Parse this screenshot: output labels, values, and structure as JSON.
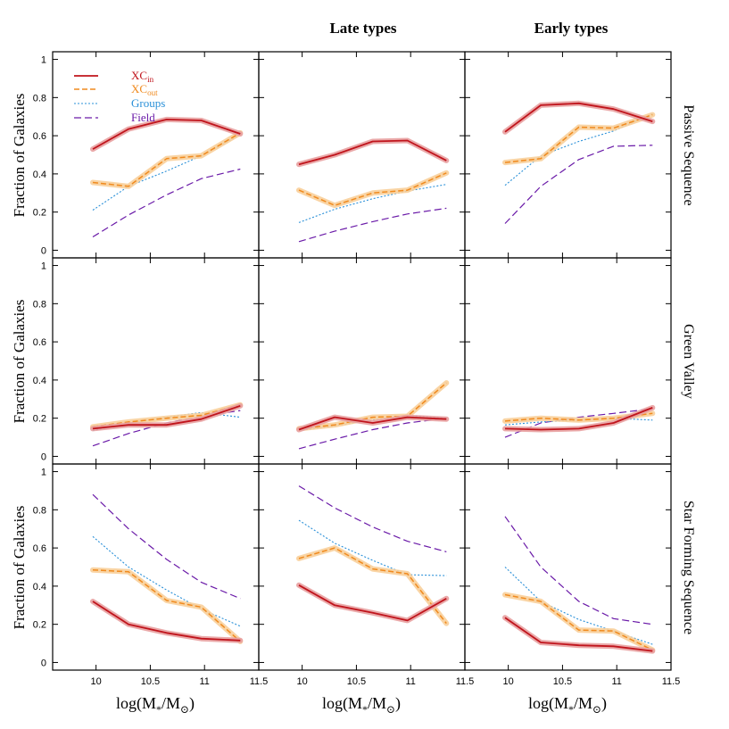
{
  "colors": {
    "XC_in": "#c0141c",
    "XC_out": "#f08a1e",
    "Groups": "#2a90d8",
    "Field": "#6a1aa8",
    "band_in": "#e8a0a0",
    "band_out": "#f8cf9a"
  },
  "legend": {
    "xc_in_main": "XC",
    "xc_in_sub": "in",
    "xc_out_main": "XC",
    "xc_out_sub": "out",
    "groups": "Groups",
    "field": "Field"
  },
  "column_titles": [
    "",
    "Late types",
    "Early types"
  ],
  "row_titles": [
    "Passive Sequence",
    "Green Valley",
    "Star Forming Sequence"
  ],
  "ylabel": "Fraction of Galaxies",
  "xlabel": {
    "main": "log(M",
    "sub1": "*",
    "mid": "/M",
    "sub2": "⊙",
    "end": ")"
  },
  "chart_data": {
    "type": "line",
    "x": [
      9.97,
      10.3,
      10.65,
      10.97,
      11.33
    ],
    "xlim": [
      9.6,
      11.5
    ],
    "ylim": [
      -0.04,
      1.04
    ],
    "xticks": [
      10,
      10.5,
      11,
      11.5
    ],
    "xtick_labels": [
      "10",
      "10.5",
      "11",
      "11.5"
    ],
    "yticks": [
      0,
      0.2,
      0.4,
      0.6,
      0.8,
      1
    ],
    "ytick_labels": [
      "0",
      "0.2",
      "0.4",
      "0.6",
      "0.8",
      "1"
    ],
    "panels": [
      [
        {
          "XC_in": [
            0.53,
            0.635,
            0.685,
            0.68,
            0.61
          ],
          "XC_out": [
            0.355,
            0.335,
            0.48,
            0.495,
            0.615
          ],
          "Groups": [
            0.21,
            0.335,
            0.415,
            0.495,
            0.605
          ],
          "Field": [
            0.07,
            0.185,
            0.29,
            0.375,
            0.425
          ]
        },
        {
          "XC_in": [
            0.45,
            0.5,
            0.57,
            0.575,
            0.47
          ],
          "XC_out": [
            0.315,
            0.235,
            0.3,
            0.315,
            0.405
          ],
          "Groups": [
            0.145,
            0.215,
            0.27,
            0.31,
            0.345
          ],
          "Field": [
            0.045,
            0.1,
            0.15,
            0.19,
            0.22
          ]
        },
        {
          "XC_in": [
            0.62,
            0.76,
            0.77,
            0.74,
            0.675
          ],
          "XC_out": [
            0.46,
            0.48,
            0.645,
            0.64,
            0.71
          ],
          "Groups": [
            0.34,
            0.495,
            0.57,
            0.625,
            0.715
          ],
          "Field": [
            0.14,
            0.335,
            0.475,
            0.545,
            0.55
          ]
        }
      ],
      [
        {
          "XC_in": [
            0.145,
            0.165,
            0.165,
            0.195,
            0.265
          ],
          "XC_out": [
            0.155,
            0.18,
            0.2,
            0.215,
            0.27
          ],
          "Groups": [
            0.135,
            0.175,
            0.205,
            0.23,
            0.205
          ],
          "Field": [
            0.055,
            0.12,
            0.175,
            0.21,
            0.24
          ]
        },
        {
          "XC_in": [
            0.14,
            0.205,
            0.175,
            0.205,
            0.195
          ],
          "XC_out": [
            0.145,
            0.165,
            0.205,
            0.21,
            0.385
          ],
          "Groups": [
            0.135,
            0.16,
            0.19,
            0.215,
            0.2
          ],
          "Field": [
            0.04,
            0.09,
            0.14,
            0.175,
            0.2
          ]
        },
        {
          "XC_in": [
            0.145,
            0.14,
            0.145,
            0.175,
            0.255
          ],
          "XC_out": [
            0.185,
            0.2,
            0.19,
            0.2,
            0.225
          ],
          "Groups": [
            0.165,
            0.18,
            0.19,
            0.2,
            0.19
          ],
          "Field": [
            0.1,
            0.175,
            0.205,
            0.225,
            0.25
          ]
        }
      ],
      [
        {
          "XC_in": [
            0.32,
            0.2,
            0.155,
            0.125,
            0.115
          ],
          "XC_out": [
            0.485,
            0.475,
            0.325,
            0.29,
            0.11
          ],
          "Groups": [
            0.66,
            0.5,
            0.38,
            0.28,
            0.19
          ],
          "Field": [
            0.88,
            0.7,
            0.54,
            0.42,
            0.335
          ]
        },
        {
          "XC_in": [
            0.405,
            0.3,
            0.26,
            0.22,
            0.335
          ],
          "XC_out": [
            0.545,
            0.6,
            0.49,
            0.465,
            0.205
          ],
          "Groups": [
            0.745,
            0.625,
            0.535,
            0.46,
            0.455
          ],
          "Field": [
            0.925,
            0.81,
            0.71,
            0.635,
            0.58
          ]
        },
        {
          "XC_in": [
            0.235,
            0.105,
            0.09,
            0.085,
            0.06
          ],
          "XC_out": [
            0.355,
            0.32,
            0.17,
            0.165,
            0.065
          ],
          "Groups": [
            0.5,
            0.32,
            0.225,
            0.165,
            0.095
          ],
          "Field": [
            0.765,
            0.5,
            0.32,
            0.23,
            0.2
          ]
        }
      ]
    ]
  }
}
